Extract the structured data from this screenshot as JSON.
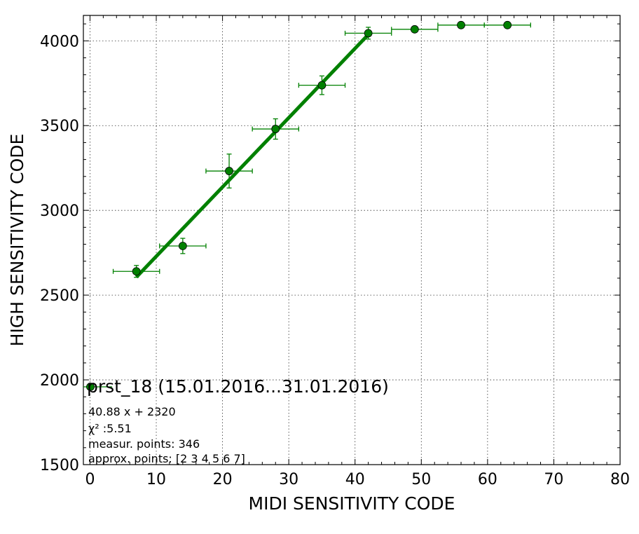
{
  "chart_data": {
    "type": "scatter",
    "xlabel": "MIDI SENSITIVITY CODE",
    "ylabel": "HIGH SENSITIVITY CODE",
    "xlim": [
      -1,
      80
    ],
    "ylim": [
      1500,
      4150
    ],
    "x_ticks": [
      0,
      10,
      20,
      30,
      40,
      50,
      60,
      70,
      80
    ],
    "y_ticks": [
      1500,
      2000,
      2500,
      3000,
      3500,
      4000
    ],
    "grid": true,
    "series": [
      {
        "name": "prst_18 (15.01.2016...31.01.2016)",
        "color": "#008000",
        "points": [
          {
            "x": 7,
            "y": 2640,
            "xerr": 3.5,
            "yerr": 35
          },
          {
            "x": 14,
            "y": 2790,
            "xerr": 3.5,
            "yerr": 45
          },
          {
            "x": 21,
            "y": 3232,
            "xerr": 3.5,
            "yerr": 100
          },
          {
            "x": 28,
            "y": 3480,
            "xerr": 3.5,
            "yerr": 60
          },
          {
            "x": 35,
            "y": 3738,
            "xerr": 3.5,
            "yerr": 55
          },
          {
            "x": 42,
            "y": 4045,
            "xerr": 3.5,
            "yerr": 35
          },
          {
            "x": 49,
            "y": 4068,
            "xerr": 3.5,
            "yerr": 0
          },
          {
            "x": 56,
            "y": 4093,
            "xerr": 3.5,
            "yerr": 0
          },
          {
            "x": 63,
            "y": 4093,
            "xerr": 3.5,
            "yerr": 0
          }
        ]
      }
    ],
    "fit_line": {
      "slope": 40.88,
      "intercept": 2320,
      "x_range": [
        7,
        42
      ],
      "color": "#008000"
    },
    "legend": {
      "placement": "lower-left",
      "label": "prst_18 (15.01.2016...31.01.2016)"
    },
    "annotations": [
      "40.88 x + 2320",
      "χ² :5.51",
      "measur. points: 346",
      "approx. points: [2 3 4 5 6 7]"
    ]
  }
}
